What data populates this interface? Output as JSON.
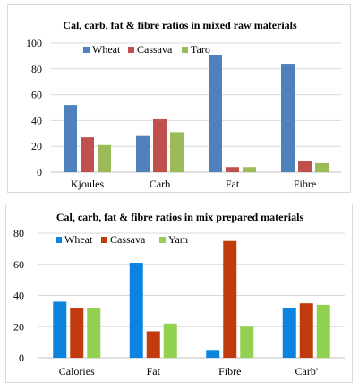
{
  "chart_data": [
    {
      "type": "bar",
      "title": "Cal, carb, fat & fibre ratios in mixed raw materials",
      "xlabel": "",
      "ylabel": "",
      "ylim": [
        0,
        100
      ],
      "yticks": [
        0,
        20,
        40,
        60,
        80,
        100
      ],
      "grid": true,
      "legend_position": "top",
      "categories": [
        "Kjoules",
        "Carb",
        "Fat",
        "Fibre"
      ],
      "series": [
        {
          "name": "Wheat",
          "color": "#4f81bd",
          "values": [
            52,
            28,
            91,
            84
          ]
        },
        {
          "name": "Cassava",
          "color": "#c0504d",
          "values": [
            27,
            41,
            4,
            9
          ]
        },
        {
          "name": "Taro",
          "color": "#9bbb59",
          "values": [
            21,
            31,
            4,
            7
          ]
        }
      ]
    },
    {
      "type": "bar",
      "title": "Cal, carb, fat & fibre ratios in mix prepared materials",
      "xlabel": "",
      "ylabel": "",
      "ylim": [
        0,
        80
      ],
      "yticks": [
        0,
        20,
        40,
        60,
        80
      ],
      "grid": true,
      "legend_position": "top",
      "categories": [
        "Calories",
        "Fat",
        "Fibre",
        "Carb'"
      ],
      "series": [
        {
          "name": "Wheat",
          "color": "#0b84e0",
          "values": [
            36,
            61,
            5,
            32
          ]
        },
        {
          "name": "Cassava",
          "color": "#c23b0e",
          "values": [
            32,
            17,
            75,
            35
          ]
        },
        {
          "name": "Yam",
          "color": "#92d050",
          "values": [
            32,
            22,
            20,
            34
          ]
        }
      ]
    }
  ]
}
